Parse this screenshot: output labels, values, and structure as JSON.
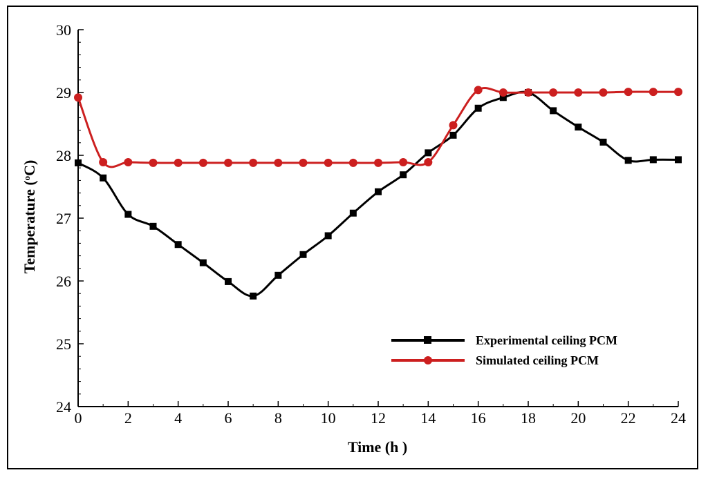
{
  "chart_data": {
    "type": "line",
    "xlabel": "Time (h  )",
    "ylabel_main": "Temperature (",
    "ylabel_sup": "o",
    "ylabel_end": "C)",
    "xlim": [
      0,
      24
    ],
    "ylim": [
      24,
      30
    ],
    "xticks": [
      0,
      2,
      4,
      6,
      8,
      10,
      12,
      14,
      16,
      18,
      20,
      22,
      24
    ],
    "yticks": [
      24,
      25,
      26,
      27,
      28,
      29,
      30
    ],
    "grid": false,
    "legend_position": "bottom-right",
    "series": [
      {
        "name": "Experimental ceiling PCM",
        "color": "#000000",
        "marker": "square",
        "x": [
          0,
          1,
          2,
          3,
          4,
          5,
          6,
          7,
          8,
          9,
          10,
          11,
          12,
          13,
          14,
          15,
          16,
          17,
          18,
          19,
          20,
          21,
          22,
          23,
          24
        ],
        "y": [
          27.88,
          27.64,
          27.06,
          26.87,
          26.58,
          26.29,
          25.99,
          25.76,
          26.09,
          26.42,
          26.72,
          27.08,
          27.42,
          27.69,
          28.04,
          28.32,
          28.75,
          28.92,
          29.0,
          28.71,
          28.45,
          28.21,
          27.92,
          27.93,
          27.93
        ]
      },
      {
        "name": "Simulated ceiling PCM",
        "color": "#cc1f1f",
        "marker": "circle",
        "x": [
          0,
          1,
          2,
          3,
          4,
          5,
          6,
          7,
          8,
          9,
          10,
          11,
          12,
          13,
          14,
          15,
          16,
          17,
          18,
          19,
          20,
          21,
          22,
          23,
          24
        ],
        "y": [
          28.92,
          27.89,
          27.89,
          27.88,
          27.88,
          27.88,
          27.88,
          27.88,
          27.88,
          27.88,
          27.88,
          27.88,
          27.88,
          27.89,
          27.89,
          28.48,
          29.04,
          29.0,
          29.0,
          29.0,
          29.0,
          29.0,
          29.01,
          29.01,
          29.01
        ]
      }
    ]
  }
}
